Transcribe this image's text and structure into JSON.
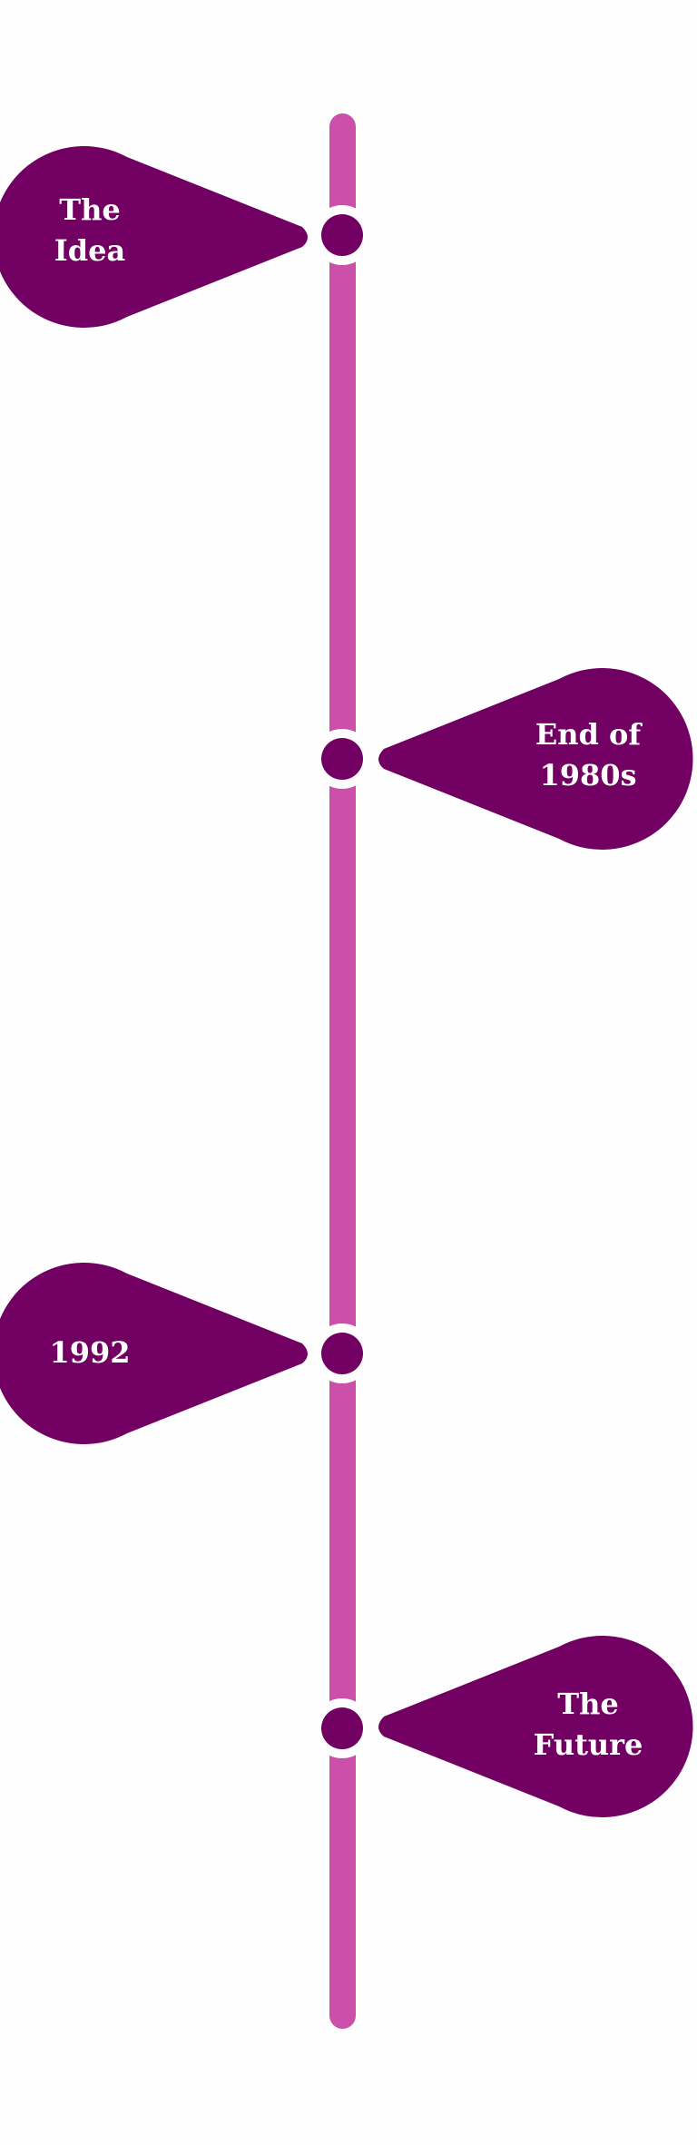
{
  "colors": {
    "background": "#fefefe",
    "line": "#cc4fa9",
    "bubble": "#720062",
    "text": "#ffffff"
  },
  "events": [
    {
      "label": "The\nIdea",
      "side": "left"
    },
    {
      "label": "End of\n1980s",
      "side": "right"
    },
    {
      "label": "1992",
      "side": "left"
    },
    {
      "label": "The\nFuture",
      "side": "right"
    }
  ]
}
